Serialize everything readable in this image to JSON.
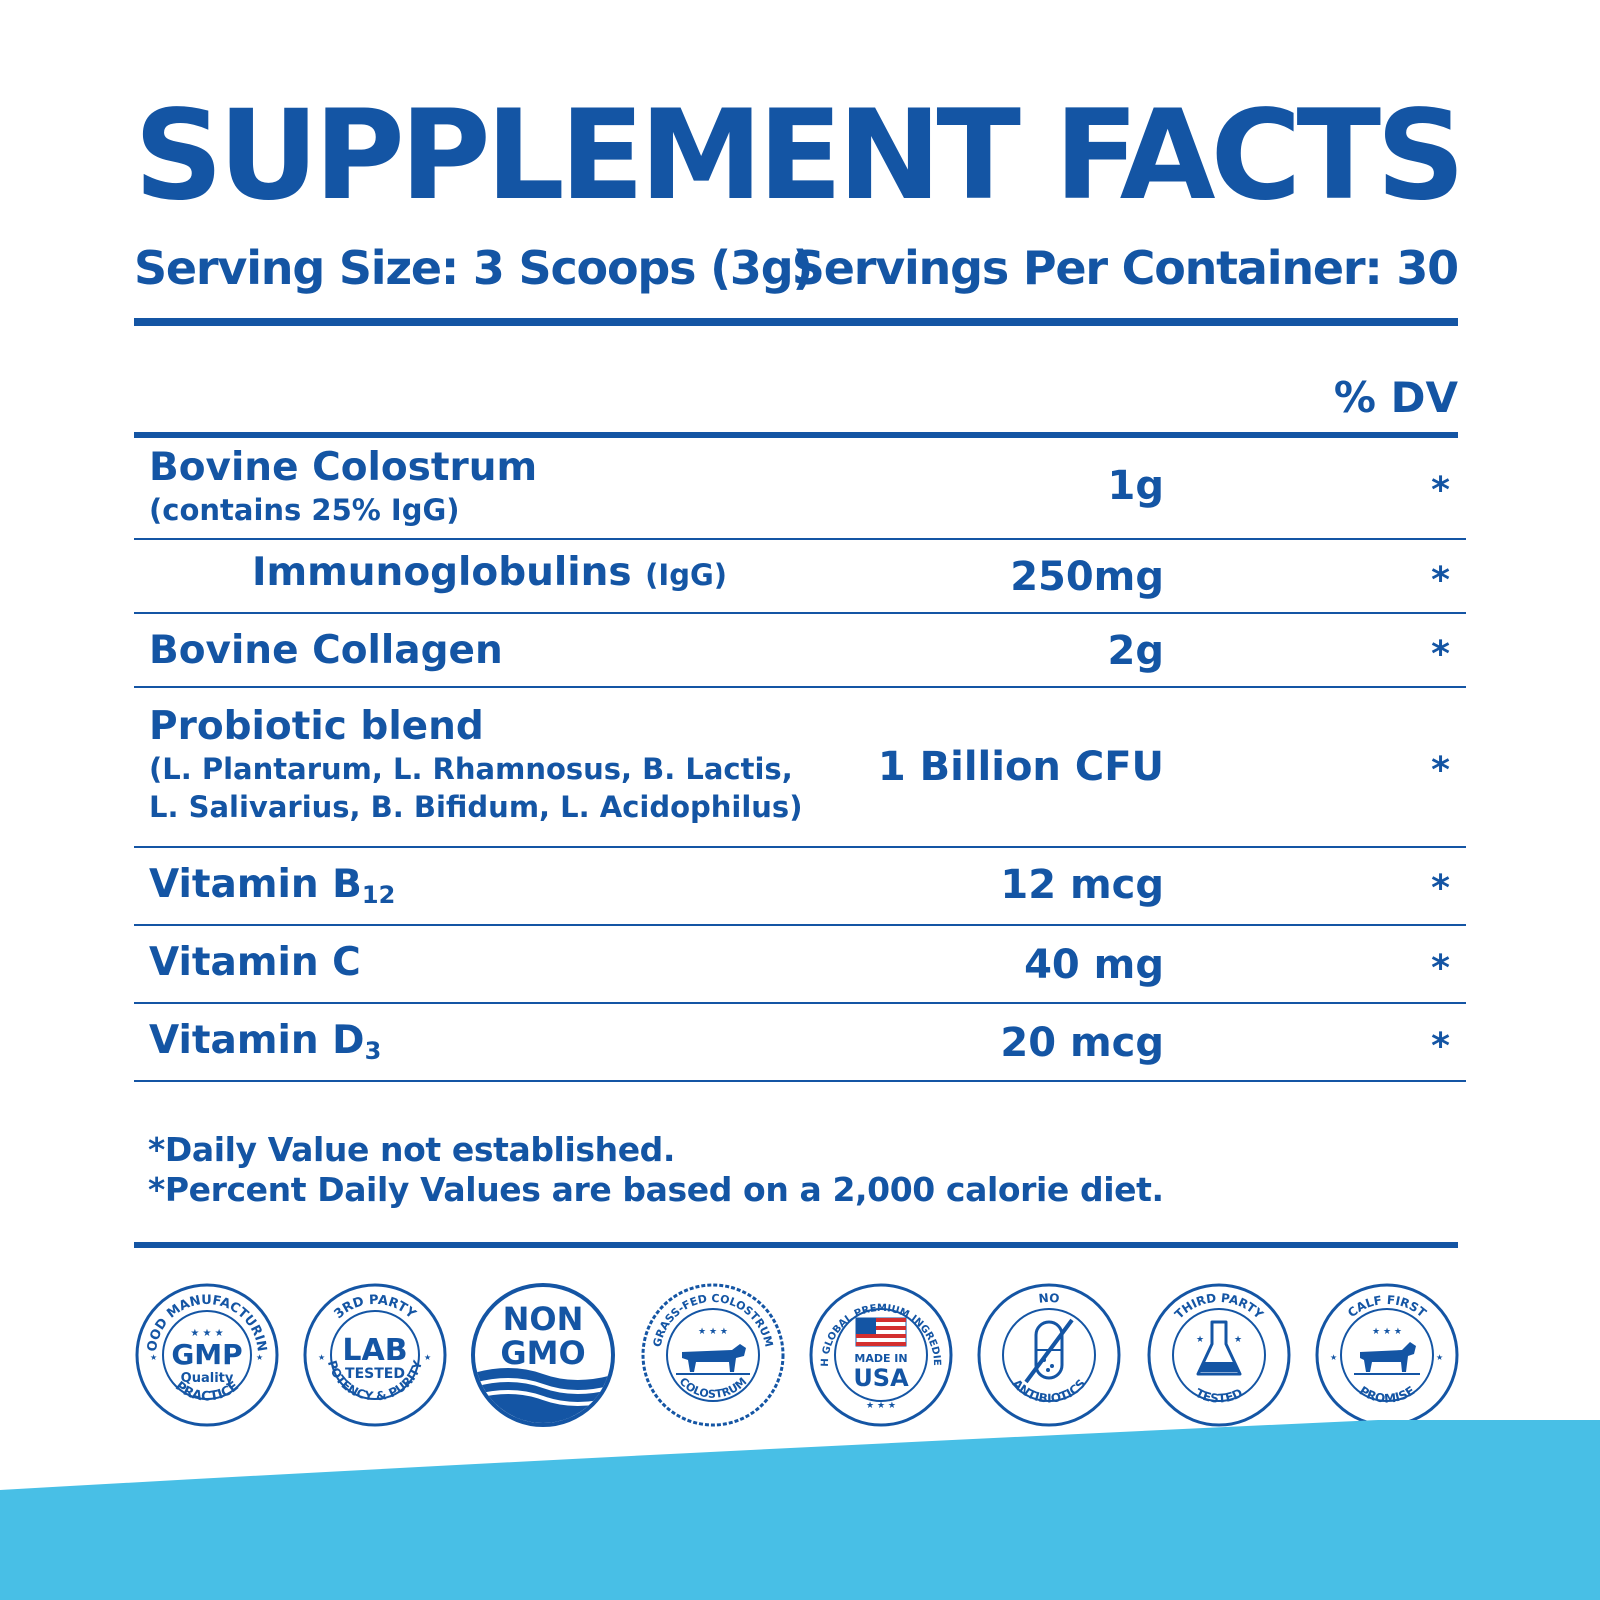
{
  "title": "SUPPLEMENT FACTS",
  "serving_size": "Serving Size: 3 Scoops (3g)",
  "servings_per_container": "Servings Per Container: 30",
  "dv_header": "% DV",
  "rows": [
    {
      "name": "Bovine Colostrum",
      "sub": "(contains 25% IgG)",
      "amount": "1g",
      "dv": "*"
    },
    {
      "name": "Immunoglobulins",
      "sub": "(IgG)",
      "amount": "250mg",
      "dv": "*"
    },
    {
      "name": "Bovine Collagen",
      "amount": "2g",
      "dv": "*"
    },
    {
      "name": "Probiotic blend",
      "sub_line1": "(L. Plantarum, L. Rhamnosus, B. Lactis,",
      "sub_line2": "L. Salivarius, B. Bifidum, L. Acidophilus)",
      "amount": "1 Billion CFU",
      "dv": "*"
    },
    {
      "name": "Vitamin B",
      "subscript": "12",
      "amount": "12 mcg",
      "dv": "*"
    },
    {
      "name": "Vitamin C",
      "amount": "40 mg",
      "dv": "*"
    },
    {
      "name": "Vitamin D",
      "subscript": "3",
      "amount": "20 mcg",
      "dv": "*"
    }
  ],
  "footnotes": [
    "*Daily Value not established.",
    "*Percent Daily Values are based on a 2,000 calorie diet."
  ],
  "badges": [
    {
      "icon": "gmp-badge-icon",
      "arc_top": "GOOD MANUFACTURING",
      "main": "GMP",
      "sub": "Quality",
      "arc_bottom": "PRACTICE"
    },
    {
      "icon": "lab-tested-badge-icon",
      "arc_top": "3RD PARTY",
      "main": "LAB",
      "sub": "TESTED",
      "arc_bottom": "POTENCY & PURITY"
    },
    {
      "icon": "non-gmo-badge-icon",
      "line1": "NON",
      "line2": "GMO"
    },
    {
      "icon": "grass-fed-badge-icon",
      "arc_top": "GRASS-FED COLOSTRUM",
      "arc_bottom": "COLOSTRUM"
    },
    {
      "icon": "made-in-usa-badge-icon",
      "arc_top": "WITH GLOBAL PREMIUM INGREDIENTS",
      "sub": "MADE IN",
      "main": "USA"
    },
    {
      "icon": "no-antibiotics-badge-icon",
      "arc_top": "NO",
      "arc_bottom": "ANTIBIOTICS"
    },
    {
      "icon": "third-party-tested-badge-icon",
      "arc_top": "THIRD PARTY",
      "arc_bottom": "TESTED"
    },
    {
      "icon": "calf-first-badge-icon",
      "arc_top": "CALF FIRST",
      "arc_bottom": "PROMISE"
    }
  ],
  "colors": {
    "primary": "#1455a4",
    "accent": "#48bfe6",
    "background": "#ffffff"
  }
}
